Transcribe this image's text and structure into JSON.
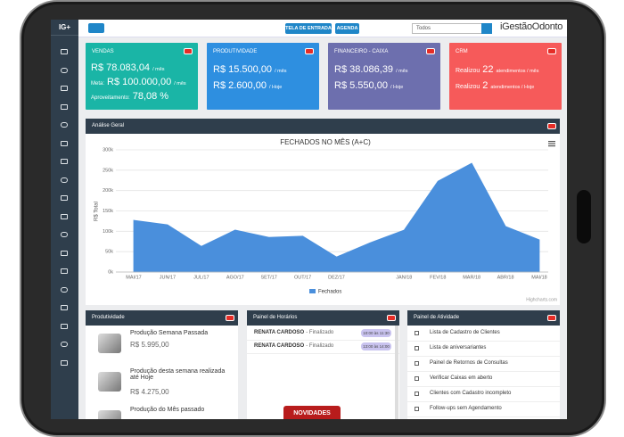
{
  "sidebar": {
    "logo": "IG+"
  },
  "header": {
    "buttons": [
      "TELA DE ENTRADA",
      "AGENDA"
    ],
    "select": "Todos",
    "brand": "iGestãoOdonto"
  },
  "cards": [
    {
      "title": "VENDAS",
      "lines": [
        {
          "value": "R$ 78.083,04",
          "unit": "/ mês"
        },
        {
          "label": "Meta:",
          "value": "R$ 100.000,00",
          "unit": "/ mês"
        },
        {
          "label": "Aproveitamento:",
          "value": "78,08 %"
        }
      ]
    },
    {
      "title": "PRODUTIVIDADE",
      "lines": [
        {
          "value": "R$ 15.500,00",
          "unit": "/ mês"
        },
        {
          "value": "R$ 2.600,00",
          "unit": "/ Hoje"
        }
      ]
    },
    {
      "title": "FINANCEIRO - CAIXA",
      "lines": [
        {
          "value": "R$ 38.086,39",
          "unit": "/ mês"
        },
        {
          "value": "R$ 5.550,00",
          "unit": "/ Hoje"
        }
      ]
    },
    {
      "title": "CRM",
      "lines": [
        {
          "label": "Realizou",
          "value": "22",
          "unit": "atendimentos / mês"
        },
        {
          "label": "Realizou",
          "value": "2",
          "unit": "atendimentos / Hoje"
        }
      ]
    }
  ],
  "analise": {
    "title": "Análise Geral",
    "chart": {
      "type": "area",
      "title": "FECHADOS NO MÊS (A+C)",
      "y_axis_title": "R$ Total",
      "categories": [
        "MAI/17",
        "JUN/17",
        "JUL/17",
        "AGO/17",
        "SET/17",
        "OUT/17",
        "DEZ/17",
        null,
        "JAN/18",
        "FEV/18",
        "MAR/18",
        "ABR/18",
        "MAI/18"
      ],
      "series": [
        {
          "name": "Fechados",
          "color": "#4a8fdc",
          "values": [
            127000,
            116000,
            63000,
            103000,
            85000,
            88000,
            37000,
            72000,
            103000,
            223000,
            267000,
            112000,
            79000
          ]
        }
      ],
      "ylim": [
        0,
        300000
      ],
      "yticks": [
        {
          "value": 0,
          "label": "0k"
        },
        {
          "value": 50000,
          "label": "50k"
        },
        {
          "value": 100000,
          "label": "100k"
        },
        {
          "value": 150000,
          "label": "150k"
        },
        {
          "value": 200000,
          "label": "200k"
        },
        {
          "value": 250000,
          "label": "250k"
        },
        {
          "value": 300000,
          "label": "300k"
        }
      ],
      "grid": true,
      "credit": "Highcharts.com"
    }
  },
  "produtividade": {
    "title": "Produtividade",
    "items": [
      {
        "title": "Produção Semana Passada",
        "value": "R$ 5.995,00"
      },
      {
        "title": "Produção desta semana realizada até Hoje",
        "value": "R$ 4.275,00"
      },
      {
        "title": "Produção do Mês passado"
      }
    ]
  },
  "horarios": {
    "title": "Painel de Horários",
    "items": [
      {
        "name": "RENATA CARDOSO",
        "status": "- Finalizado",
        "time": "10:00 às 11:30"
      },
      {
        "name": "RENATA CARDOSO",
        "status": "- Finalizado",
        "time": "13:00 às 14:00"
      }
    ],
    "button": "NOVIDADES"
  },
  "atividade": {
    "title": "Painel de Atividade",
    "items": [
      "Lista de Cadastro de Clientes",
      "Lista de aniversariantes",
      "Painel de Retornos de Consultas",
      "Verificar Caixas em aberto",
      "Clientes com Cadastro incompleto",
      "Follow-ups sem Agendamento"
    ]
  }
}
